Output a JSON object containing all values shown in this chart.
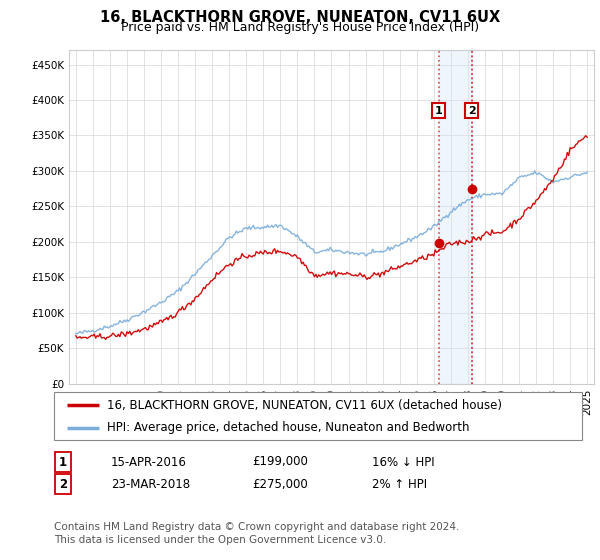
{
  "title": "16, BLACKTHORN GROVE, NUNEATON, CV11 6UX",
  "subtitle": "Price paid vs. HM Land Registry's House Price Index (HPI)",
  "ylim": [
    0,
    470000
  ],
  "yticks": [
    0,
    50000,
    100000,
    150000,
    200000,
    250000,
    300000,
    350000,
    400000,
    450000
  ],
  "ytick_labels": [
    "£0",
    "£50K",
    "£100K",
    "£150K",
    "£200K",
    "£250K",
    "£300K",
    "£350K",
    "£400K",
    "£450K"
  ],
  "xmin": 1994.6,
  "xmax": 2025.4,
  "red_line_color": "#cc0000",
  "blue_line_color": "#7aacdc",
  "sale1_year": 2016.29,
  "sale1_price": 199000,
  "sale2_year": 2018.23,
  "sale2_price": 275000,
  "vline_color": "#dd0000",
  "shade_color": "#d0e4f5",
  "legend_red": "16, BLACKTHORN GROVE, NUNEATON, CV11 6UX (detached house)",
  "legend_blue": "HPI: Average price, detached house, Nuneaton and Bedworth",
  "table_row1_num": "1",
  "table_row1_date": "15-APR-2016",
  "table_row1_price": "£199,000",
  "table_row1_hpi": "16% ↓ HPI",
  "table_row2_num": "2",
  "table_row2_date": "23-MAR-2018",
  "table_row2_price": "£275,000",
  "table_row2_hpi": "2% ↑ HPI",
  "footer": "Contains HM Land Registry data © Crown copyright and database right 2024.\nThis data is licensed under the Open Government Licence v3.0.",
  "title_fontsize": 10.5,
  "subtitle_fontsize": 9,
  "tick_fontsize": 7.5,
  "legend_fontsize": 8.5,
  "table_fontsize": 8.5,
  "footer_fontsize": 7.5
}
